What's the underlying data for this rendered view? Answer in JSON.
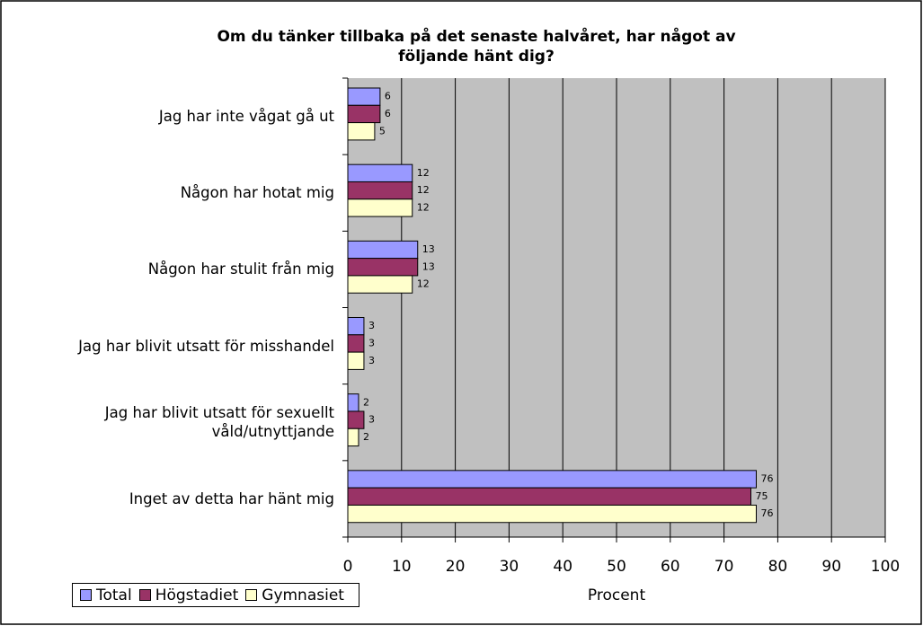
{
  "chart_data": {
    "type": "hbar",
    "title": [
      "Om du tänker tillbaka på det senaste halvåret, har något av",
      "följande hänt dig?"
    ],
    "categories": [
      "Jag har inte vågat gå ut",
      "Någon har hotat mig",
      "Någon har stulit från mig",
      "Jag har blivit utsatt för misshandel",
      "Jag har blivit utsatt för sexuellt våld/utnyttjande",
      "Inget av detta har hänt mig"
    ],
    "series": [
      {
        "name": "Total",
        "color": "#9999ff",
        "values": [
          6,
          12,
          13,
          3,
          2,
          76
        ]
      },
      {
        "name": "Högstadiet",
        "color": "#993366",
        "values": [
          6,
          12,
          13,
          3,
          3,
          75
        ]
      },
      {
        "name": "Gymnasiet",
        "color": "#ffffcc",
        "values": [
          5,
          12,
          12,
          3,
          2,
          76
        ]
      }
    ],
    "xlabel": "Procent",
    "xlim": [
      0,
      100
    ],
    "xticks": [
      0,
      10,
      20,
      30,
      40,
      50,
      60,
      70,
      80,
      90,
      100
    ],
    "grid": true,
    "legend": "bottom-left"
  }
}
